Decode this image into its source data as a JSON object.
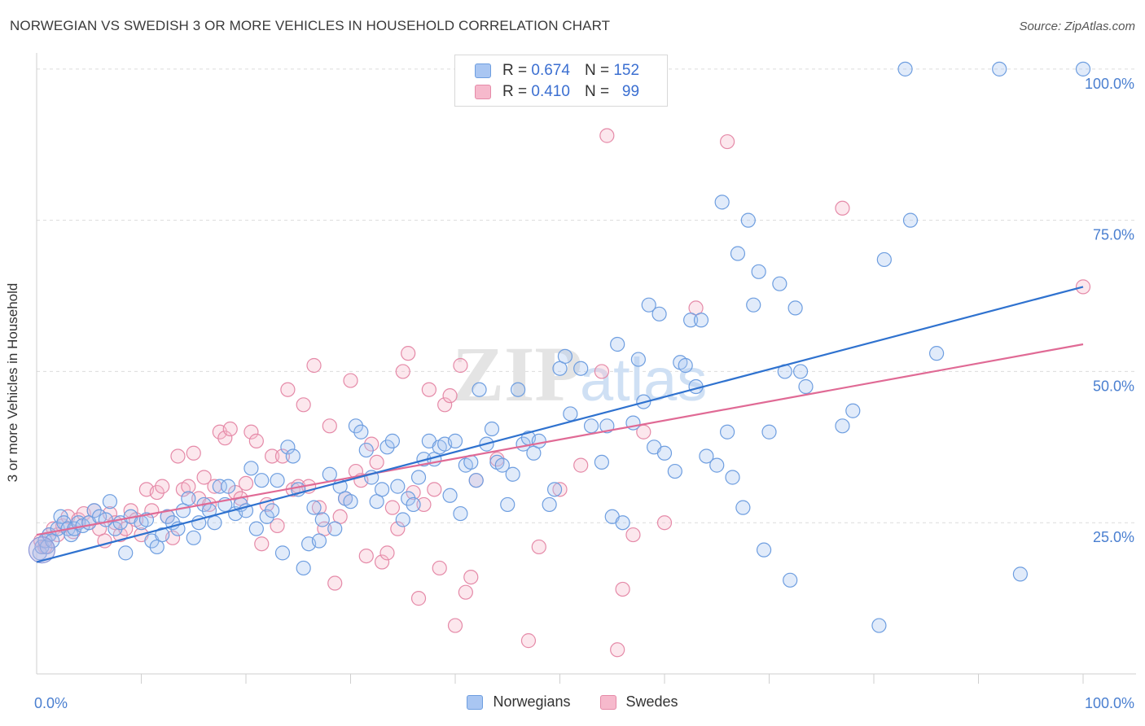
{
  "title": "NORWEGIAN VS SWEDISH 3 OR MORE VEHICLES IN HOUSEHOLD CORRELATION CHART",
  "source": "Source: ZipAtlas.com",
  "watermark": {
    "zip": "ZIP",
    "atlas": "atlas"
  },
  "legend": {
    "r_label": "R =",
    "n_label": "N =",
    "series": [
      {
        "name": "Norwegians",
        "r": "0.674",
        "n": "152",
        "fill": "#a9c6f2",
        "stroke": "#6e9ee0"
      },
      {
        "name": "Swedes",
        "r": "0.410",
        "n": "99",
        "fill": "#f6b9cc",
        "stroke": "#e58aa8"
      }
    ]
  },
  "chart_data": {
    "type": "scatter",
    "ylabel": "3 or more Vehicles in Household",
    "xlabel": "",
    "xlim": [
      0,
      100
    ],
    "ylim": [
      0,
      102
    ],
    "x_tick_labels": [
      {
        "value": 0,
        "label": "0.0%"
      },
      {
        "value": 100,
        "label": "100.0%"
      }
    ],
    "y_tick_labels": [
      {
        "value": 25,
        "label": "25.0%"
      },
      {
        "value": 50,
        "label": "50.0%"
      },
      {
        "value": 75,
        "label": "75.0%"
      },
      {
        "value": 100,
        "label": "100.0%"
      }
    ],
    "grid": "horizontal dashed",
    "colors": {
      "norwegians": "#4a86d6",
      "swedes": "#e07aa0",
      "blue_line": "#2f72cf",
      "pink_line": "#e06a95"
    },
    "series": [
      {
        "name": "Norwegians",
        "trend": {
          "x": [
            0,
            100
          ],
          "y": [
            18.5,
            64
          ]
        },
        "points": [
          [
            0.3,
            20
          ],
          [
            0.5,
            21
          ],
          [
            0.8,
            22
          ],
          [
            1,
            21
          ],
          [
            1.2,
            23
          ],
          [
            1.5,
            22
          ],
          [
            2,
            24
          ],
          [
            2.3,
            26
          ],
          [
            2.6,
            25
          ],
          [
            3,
            24
          ],
          [
            3.3,
            23
          ],
          [
            3.6,
            24
          ],
          [
            4,
            25
          ],
          [
            4.4,
            24.5
          ],
          [
            5,
            25
          ],
          [
            5.5,
            27
          ],
          [
            6,
            26
          ],
          [
            6.6,
            25.5
          ],
          [
            7,
            28.5
          ],
          [
            7.5,
            24
          ],
          [
            8,
            25
          ],
          [
            8.5,
            20
          ],
          [
            9,
            26
          ],
          [
            10,
            25
          ],
          [
            10.5,
            25.5
          ],
          [
            11,
            22
          ],
          [
            11.5,
            21
          ],
          [
            12,
            23
          ],
          [
            12.5,
            26
          ],
          [
            13,
            25
          ],
          [
            13.5,
            24
          ],
          [
            14,
            27
          ],
          [
            14.5,
            29
          ],
          [
            15,
            22.5
          ],
          [
            15.5,
            25
          ],
          [
            16,
            28
          ],
          [
            16.5,
            27
          ],
          [
            17,
            25
          ],
          [
            17.5,
            31
          ],
          [
            18,
            28
          ],
          [
            18.3,
            31
          ],
          [
            19,
            26.5
          ],
          [
            19.5,
            28
          ],
          [
            20,
            27
          ],
          [
            20.5,
            34
          ],
          [
            21,
            24
          ],
          [
            21.5,
            32
          ],
          [
            22,
            26
          ],
          [
            22.5,
            27
          ],
          [
            23,
            32
          ],
          [
            23.5,
            20
          ],
          [
            24,
            37.5
          ],
          [
            24.5,
            36
          ],
          [
            25,
            30.5
          ],
          [
            25.5,
            17.5
          ],
          [
            26,
            21.5
          ],
          [
            26.5,
            27.5
          ],
          [
            27,
            22
          ],
          [
            27.3,
            25.5
          ],
          [
            28,
            33
          ],
          [
            28.5,
            24
          ],
          [
            29,
            31
          ],
          [
            29.5,
            29
          ],
          [
            30,
            28.5
          ],
          [
            30.5,
            41
          ],
          [
            31,
            40
          ],
          [
            31.5,
            37
          ],
          [
            32,
            32.5
          ],
          [
            32.5,
            28.5
          ],
          [
            33,
            30.5
          ],
          [
            33.5,
            37.5
          ],
          [
            34,
            38.5
          ],
          [
            34.5,
            31
          ],
          [
            35,
            25.5
          ],
          [
            35.5,
            29
          ],
          [
            36,
            28
          ],
          [
            36.5,
            32.5
          ],
          [
            37,
            35.5
          ],
          [
            37.5,
            38.5
          ],
          [
            38,
            35.5
          ],
          [
            38.5,
            37.5
          ],
          [
            39,
            38
          ],
          [
            39.5,
            29.5
          ],
          [
            40,
            38.5
          ],
          [
            40.5,
            26.5
          ],
          [
            41,
            34.5
          ],
          [
            41.5,
            35
          ],
          [
            42,
            32
          ],
          [
            42.3,
            47
          ],
          [
            43,
            38
          ],
          [
            43.5,
            40.5
          ],
          [
            44,
            35
          ],
          [
            44.5,
            34.5
          ],
          [
            45,
            28
          ],
          [
            45.5,
            33
          ],
          [
            46,
            47
          ],
          [
            46.5,
            38
          ],
          [
            47,
            39
          ],
          [
            47.5,
            36.5
          ],
          [
            48,
            38.5
          ],
          [
            49,
            28
          ],
          [
            49.5,
            30.5
          ],
          [
            50,
            50.5
          ],
          [
            50.5,
            52.5
          ],
          [
            51,
            43
          ],
          [
            52,
            50.5
          ],
          [
            53,
            41
          ],
          [
            54,
            35
          ],
          [
            54.5,
            41
          ],
          [
            55,
            26
          ],
          [
            55.5,
            54.5
          ],
          [
            56,
            25
          ],
          [
            57,
            41.5
          ],
          [
            57.5,
            52
          ],
          [
            58,
            45
          ],
          [
            58.5,
            61
          ],
          [
            59,
            37.5
          ],
          [
            59.5,
            59.5
          ],
          [
            60,
            36.5
          ],
          [
            61,
            33.5
          ],
          [
            61.5,
            51.5
          ],
          [
            62,
            51
          ],
          [
            62.5,
            58.5
          ],
          [
            63,
            47.5
          ],
          [
            63.5,
            58.5
          ],
          [
            64,
            36
          ],
          [
            65,
            34.5
          ],
          [
            65.5,
            78
          ],
          [
            66,
            40
          ],
          [
            66.5,
            32.5
          ],
          [
            67,
            69.5
          ],
          [
            67.5,
            27.5
          ],
          [
            68,
            75
          ],
          [
            68.5,
            61
          ],
          [
            69,
            66.5
          ],
          [
            69.5,
            20.5
          ],
          [
            70,
            40
          ],
          [
            71,
            64.5
          ],
          [
            71.5,
            50
          ],
          [
            72,
            15.5
          ],
          [
            72.5,
            60.5
          ],
          [
            73,
            50
          ],
          [
            73.5,
            47.5
          ],
          [
            77,
            41
          ],
          [
            78,
            43.5
          ],
          [
            80.5,
            8
          ],
          [
            81,
            68.5
          ],
          [
            83,
            100
          ],
          [
            83.5,
            75
          ],
          [
            86,
            53
          ],
          [
            92,
            100
          ],
          [
            94,
            16.5
          ],
          [
            100,
            100
          ]
        ]
      },
      {
        "name": "Swedes",
        "trend": {
          "x": [
            0,
            100
          ],
          "y": [
            23,
            54.5
          ]
        },
        "points": [
          [
            0.4,
            22
          ],
          [
            0.8,
            21
          ],
          [
            1.2,
            23
          ],
          [
            1.6,
            24
          ],
          [
            2,
            23
          ],
          [
            2.5,
            24.5
          ],
          [
            3,
            26
          ],
          [
            3.5,
            23.5
          ],
          [
            4,
            25.5
          ],
          [
            4.5,
            26.5
          ],
          [
            5,
            25
          ],
          [
            5.5,
            27
          ],
          [
            6,
            24
          ],
          [
            6.5,
            22
          ],
          [
            7,
            26.5
          ],
          [
            7.5,
            25
          ],
          [
            8,
            23
          ],
          [
            8.5,
            24
          ],
          [
            9,
            27
          ],
          [
            9.5,
            25.5
          ],
          [
            10,
            23
          ],
          [
            10.5,
            30.5
          ],
          [
            11,
            27
          ],
          [
            11.5,
            30
          ],
          [
            12,
            31
          ],
          [
            12.5,
            26
          ],
          [
            13,
            22.5
          ],
          [
            13.5,
            36
          ],
          [
            14,
            30.5
          ],
          [
            14.5,
            31
          ],
          [
            15,
            36.5
          ],
          [
            15.5,
            29
          ],
          [
            16,
            32.5
          ],
          [
            16.5,
            28
          ],
          [
            17,
            31
          ],
          [
            17.5,
            40
          ],
          [
            18,
            39
          ],
          [
            18.5,
            40.5
          ],
          [
            19,
            30
          ],
          [
            19.5,
            29
          ],
          [
            20,
            31.5
          ],
          [
            20.5,
            40
          ],
          [
            21,
            38.5
          ],
          [
            21.5,
            21.5
          ],
          [
            22,
            28
          ],
          [
            22.5,
            36
          ],
          [
            23,
            24.5
          ],
          [
            23.5,
            36
          ],
          [
            24,
            47
          ],
          [
            24.5,
            30.5
          ],
          [
            25,
            31
          ],
          [
            25.5,
            44.5
          ],
          [
            26,
            31
          ],
          [
            26.5,
            51
          ],
          [
            27,
            27.5
          ],
          [
            27.5,
            24
          ],
          [
            28,
            41
          ],
          [
            28.5,
            15
          ],
          [
            29,
            26
          ],
          [
            29.5,
            29
          ],
          [
            30,
            48.5
          ],
          [
            30.5,
            33.5
          ],
          [
            31,
            32
          ],
          [
            31.5,
            19.5
          ],
          [
            32,
            38
          ],
          [
            32.5,
            35
          ],
          [
            33,
            18.5
          ],
          [
            33.5,
            20
          ],
          [
            34,
            27.5
          ],
          [
            34.5,
            24
          ],
          [
            35,
            50
          ],
          [
            35.5,
            53
          ],
          [
            36,
            30
          ],
          [
            36.5,
            12.5
          ],
          [
            37,
            28
          ],
          [
            37.5,
            47
          ],
          [
            38,
            30.5
          ],
          [
            38.5,
            17.5
          ],
          [
            39,
            44.5
          ],
          [
            39.5,
            46
          ],
          [
            40,
            8
          ],
          [
            40.5,
            51
          ],
          [
            41,
            13.5
          ],
          [
            41.5,
            16
          ],
          [
            42,
            32
          ],
          [
            44,
            35.5
          ],
          [
            47,
            5.5
          ],
          [
            48,
            21
          ],
          [
            50,
            30.5
          ],
          [
            52,
            34.5
          ],
          [
            54,
            50
          ],
          [
            54.5,
            89
          ],
          [
            55.5,
            4
          ],
          [
            56,
            14
          ],
          [
            57,
            23
          ],
          [
            58,
            40
          ],
          [
            60,
            25
          ],
          [
            63,
            60.5
          ],
          [
            66,
            88
          ],
          [
            77,
            77
          ],
          [
            100,
            64
          ]
        ]
      }
    ]
  }
}
